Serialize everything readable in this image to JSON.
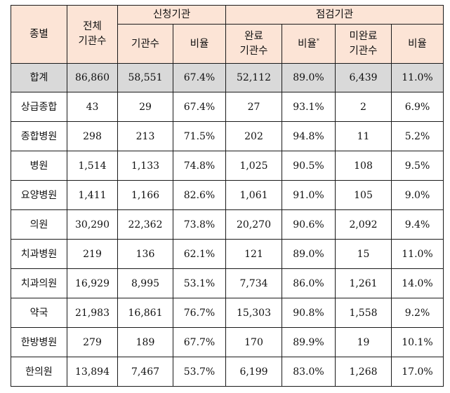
{
  "table": {
    "headers": {
      "type": "종별",
      "total_inst": [
        "전체",
        "기관수"
      ],
      "applied_group": "신청기관",
      "inspected_group": "점검기관",
      "applied_count": "기관수",
      "applied_ratio": "비율",
      "done_count": [
        "완료",
        "기관수"
      ],
      "done_ratio": "비율",
      "done_ratio_mark": "*",
      "undone_count": [
        "미완료",
        "기관수"
      ],
      "undone_ratio": "비율"
    },
    "rows": [
      {
        "type": "합계",
        "total": "86,860",
        "applied": "58,551",
        "applied_ratio": "67.4%",
        "done": "52,112",
        "done_ratio": "89.0%",
        "undone": "6,439",
        "undone_ratio": "11.0%"
      },
      {
        "type": "상급종합",
        "total": "43",
        "applied": "29",
        "applied_ratio": "67.4%",
        "done": "27",
        "done_ratio": "93.1%",
        "undone": "2",
        "undone_ratio": "6.9%"
      },
      {
        "type": "종합병원",
        "total": "298",
        "applied": "213",
        "applied_ratio": "71.5%",
        "done": "202",
        "done_ratio": "94.8%",
        "undone": "11",
        "undone_ratio": "5.2%"
      },
      {
        "type": "병원",
        "total": "1,514",
        "applied": "1,133",
        "applied_ratio": "74.8%",
        "done": "1,025",
        "done_ratio": "90.5%",
        "undone": "108",
        "undone_ratio": "9.5%"
      },
      {
        "type": "요양병원",
        "total": "1,411",
        "applied": "1,166",
        "applied_ratio": "82.6%",
        "done": "1,061",
        "done_ratio": "91.0%",
        "undone": "105",
        "undone_ratio": "9.0%"
      },
      {
        "type": "의원",
        "total": "30,290",
        "applied": "22,362",
        "applied_ratio": "73.8%",
        "done": "20,270",
        "done_ratio": "90.6%",
        "undone": "2,092",
        "undone_ratio": "9.4%"
      },
      {
        "type": "치과병원",
        "total": "219",
        "applied": "136",
        "applied_ratio": "62.1%",
        "done": "121",
        "done_ratio": "89.0%",
        "undone": "15",
        "undone_ratio": "11.0%"
      },
      {
        "type": "치과의원",
        "total": "16,929",
        "applied": "8,995",
        "applied_ratio": "53.1%",
        "done": "7,734",
        "done_ratio": "86.0%",
        "undone": "1,261",
        "undone_ratio": "14.0%"
      },
      {
        "type": "약국",
        "total": "21,983",
        "applied": "16,861",
        "applied_ratio": "76.7%",
        "done": "15,303",
        "done_ratio": "90.8%",
        "undone": "1,558",
        "undone_ratio": "9.2%"
      },
      {
        "type": "한방병원",
        "total": "279",
        "applied": "189",
        "applied_ratio": "67.7%",
        "done": "170",
        "done_ratio": "89.9%",
        "undone": "19",
        "undone_ratio": "10.1%"
      },
      {
        "type": "한의원",
        "total": "13,894",
        "applied": "7,467",
        "applied_ratio": "53.7%",
        "done": "6,199",
        "done_ratio": "83.0%",
        "undone": "1,268",
        "undone_ratio": "17.0%"
      }
    ]
  }
}
